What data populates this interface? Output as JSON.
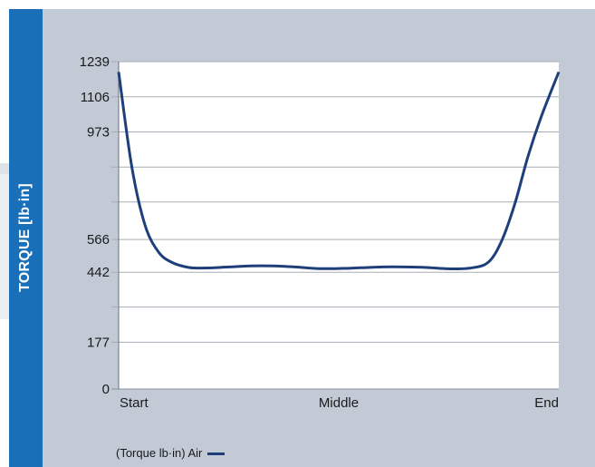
{
  "chart_data": {
    "type": "line",
    "ylabel": "TORQUE [lb·in]",
    "xlabel": "",
    "title": "",
    "ylim": [
      0,
      1239
    ],
    "yticks": [
      {
        "value": 1239,
        "label": "1239"
      },
      {
        "value": 1106,
        "label": "1106"
      },
      {
        "value": 973,
        "label": "973"
      },
      {
        "value": 840,
        "label": ""
      },
      {
        "value": 708,
        "label": ""
      },
      {
        "value": 566,
        "label": "566"
      },
      {
        "value": 442,
        "label": "442"
      },
      {
        "value": 310,
        "label": ""
      },
      {
        "value": 177,
        "label": "177"
      },
      {
        "value": 0,
        "label": "0"
      }
    ],
    "xticks": [
      {
        "value": 0,
        "label": "Start"
      },
      {
        "value": 0.5,
        "label": "Middle"
      },
      {
        "value": 1,
        "label": "End"
      }
    ],
    "grid": true,
    "legend_position": "bottom-left",
    "series": [
      {
        "name": "(Torque lb·in) Air",
        "color": "#1f3f7a",
        "x": [
          0,
          0.03,
          0.06,
          0.09,
          0.12,
          0.16,
          0.2,
          0.25,
          0.3,
          0.35,
          0.4,
          0.45,
          0.5,
          0.55,
          0.6,
          0.65,
          0.7,
          0.75,
          0.8,
          0.84,
          0.87,
          0.9,
          0.93,
          0.96,
          1.0
        ],
        "y": [
          1200,
          840,
          620,
          520,
          480,
          460,
          458,
          462,
          466,
          466,
          462,
          456,
          456,
          459,
          462,
          462,
          460,
          455,
          458,
          480,
          560,
          700,
          880,
          1030,
          1200
        ]
      }
    ]
  }
}
